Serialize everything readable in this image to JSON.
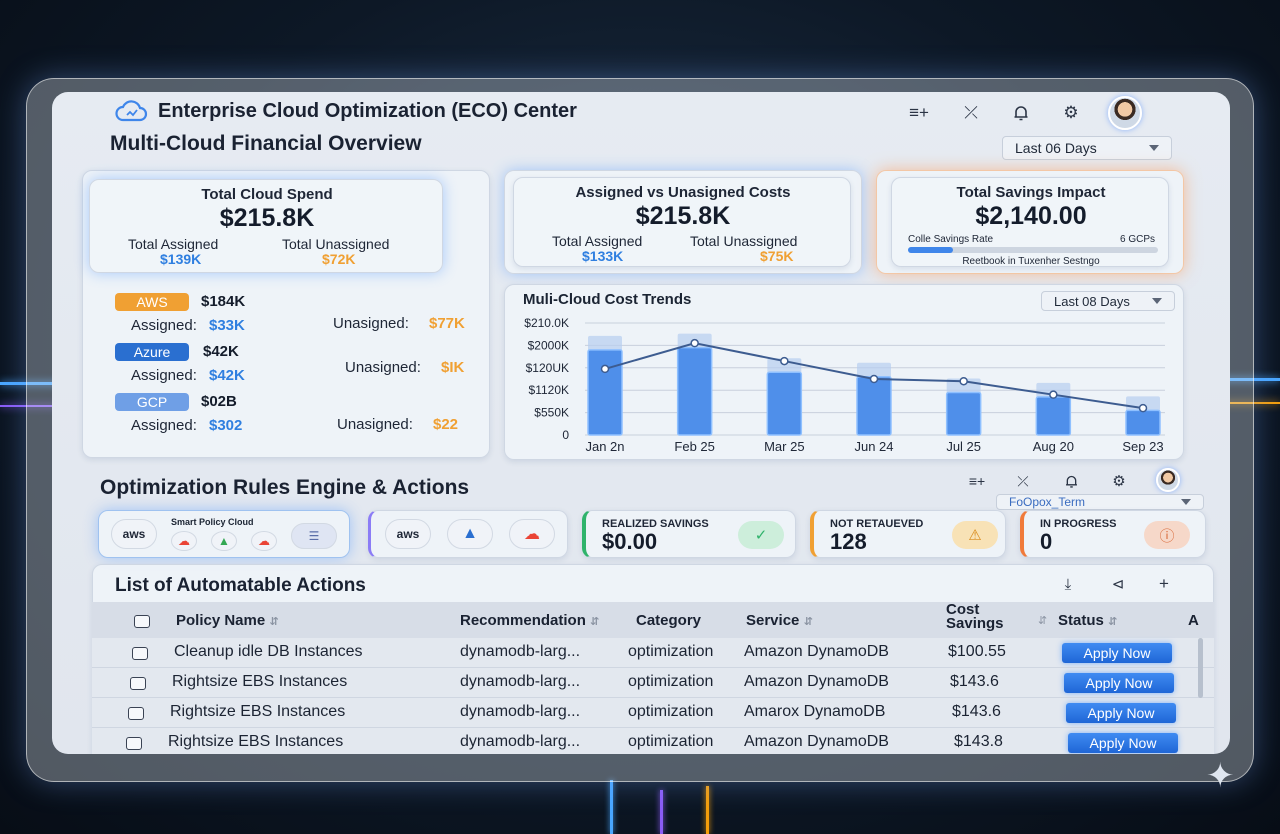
{
  "header": {
    "app_title": "Enterprise Cloud Optimization (ECO) Center",
    "section_title": "Multi-Cloud Financial Overview",
    "date_range": "Last 06 Days"
  },
  "kpis": {
    "total_spend": {
      "title": "Total Cloud Spend",
      "value": "$215.8K",
      "assigned_label": "Total Assigned",
      "assigned_value": "$139K",
      "unassigned_label": "Total Unassigned",
      "unassigned_value": "$72K"
    },
    "assigned_vs": {
      "title": "Assigned vs Unasigned Costs",
      "value": "$215.8K",
      "assigned_label": "Total Assigned",
      "assigned_value": "$133K",
      "unassigned_label": "Total Unassigned",
      "unassigned_value": "$75K"
    },
    "savings": {
      "title": "Total Savings Impact",
      "value": "$2,140.00",
      "rate_label": "Colle Savings Rate",
      "rate_right": "6 GCPs",
      "rate_fraction": 0.18,
      "footer": "Reetbook in Tuxenher Sestngo"
    }
  },
  "providers": [
    {
      "name": "AWS",
      "color": "#f0a033",
      "amount": "$184K",
      "assigned_label": "Assigned:",
      "assigned": "$33K",
      "unassigned_label": "Unasigned:",
      "unassigned": "$77K"
    },
    {
      "name": "Azure",
      "color": "#2a6fd0",
      "amount": "$42K",
      "assigned_label": "Assigned:",
      "assigned": "$42K",
      "unassigned_label": "Unasigned:",
      "unassigned": "$IK"
    },
    {
      "name": "GCP",
      "color": "#6f9fe6",
      "amount": "$02B",
      "assigned_label": "Assigned:",
      "assigned": "$302",
      "unassigned_label": "Unasigned:",
      "unassigned": "$22"
    }
  ],
  "trends": {
    "title": "Muli-Cloud Cost Trends",
    "range": "Last 08 Days"
  },
  "chart_data": {
    "type": "bar",
    "title": "Muli-Cloud Cost Trends",
    "categories": [
      "Jan 2n",
      "Feb 25",
      "Mar 25",
      "Jun 24",
      "Jul 25",
      "Aug 20",
      "Sep 23"
    ],
    "y_tick_labels": [
      "$210.0K",
      "$2000K",
      "$120UK",
      "$1120K",
      "$550K",
      "0"
    ],
    "ylim": [
      0,
      5
    ],
    "series": [
      {
        "values": [
          3.8,
          3.9,
          2.8,
          2.6,
          1.9,
          1.7,
          1.1
        ]
      },
      {
        "values": [
          2.95,
          4.1,
          3.3,
          2.5,
          2.4,
          1.8,
          1.2
        ]
      }
    ],
    "grid": true,
    "legend": "none"
  },
  "rules": {
    "title": "Optimization Rules Engine & Actions",
    "filter_value": "FoOpox_Term",
    "smart_policy_label": "Smart Policy Cloud",
    "aws_logo": "aws",
    "stats": [
      {
        "label": "REALIZED SAVINGS",
        "value": "$0.00",
        "accent": "#2fb36b",
        "icon": "check-icon",
        "glyph": "✓"
      },
      {
        "label": "NOT RETAUEVED",
        "value": "128",
        "accent": "#f0a033",
        "icon": "warning-icon",
        "glyph": "⚠"
      },
      {
        "label": "IN PROGRESS",
        "value": "0",
        "accent": "#f07a3a",
        "icon": "info-icon",
        "glyph": "ⓘ"
      }
    ]
  },
  "table": {
    "title": "List of Automatable Actions",
    "columns": [
      "Policy Name",
      "Recommendation",
      "Category",
      "Service",
      "Cost Savings",
      "Status",
      "A"
    ],
    "rows": [
      {
        "policy": "Cleanup idle DB Instances",
        "recommendation": "dynamodb-larg...",
        "category": "optimization",
        "service": "Amazon DynamoDB",
        "savings": "$100.55",
        "status": "Apply Now"
      },
      {
        "policy": "Rightsize EBS Instances",
        "recommendation": "dynamodb-larg...",
        "category": "optimization",
        "service": "Amazon DynamoDB",
        "savings": "$143.6",
        "status": "Apply Now"
      },
      {
        "policy": "Rightsize EBS Instances",
        "recommendation": "dynamodb-larg...",
        "category": "optimization",
        "service": "Amarox DynamoDB",
        "savings": "$143.6",
        "status": "Apply Now"
      },
      {
        "policy": "Rightsize EBS Instances",
        "recommendation": "dynamodb-larg...",
        "category": "optimization",
        "service": "Amazon DynamoDB",
        "savings": "$143.8",
        "status": "Apply Now"
      }
    ]
  }
}
